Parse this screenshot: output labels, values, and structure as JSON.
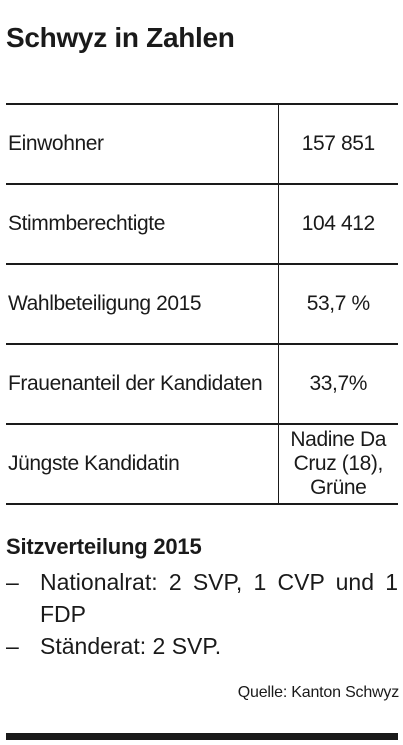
{
  "title": "Schwyz in Zahlen",
  "stats": [
    {
      "label": "Einwohner",
      "value": "157 851"
    },
    {
      "label": "Stimmberechtigte",
      "value": "104 412"
    },
    {
      "label": "Wahlbeteiligung 2015",
      "value": "53,7 %"
    },
    {
      "label": "Frauenanteil der Kandidaten",
      "value": "33,7%"
    },
    {
      "label": "Jüngste Kandidatin",
      "value": "Nadine Da Cruz (18), Grüne"
    }
  ],
  "seats": {
    "title": "Sitzverteilung 2015",
    "bullet": "–",
    "items": [
      "Nationalrat: 2 SVP, 1 CVP und 1 FDP",
      "Ständerat: 2 SVP."
    ]
  },
  "source": "Quelle: Kanton Schwyz"
}
